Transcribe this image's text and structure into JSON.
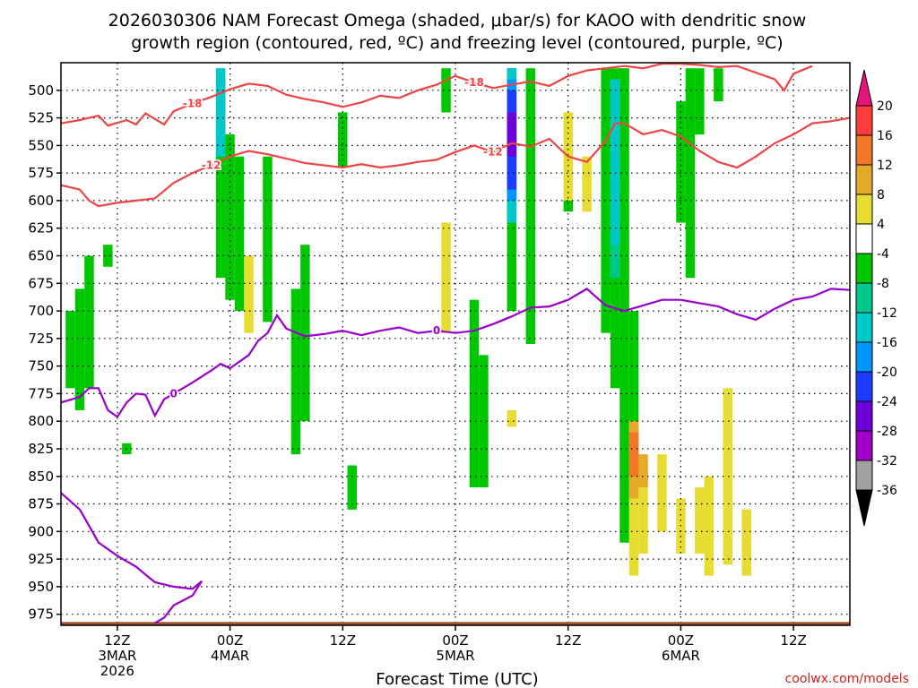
{
  "title_line1": "2026030306 NAM Forecast Omega (shaded, μbar/s) for KAOO with dendritic snow",
  "title_line2": "growth region (contoured, red, ºC) and freezing level (contoured, purple, ºC)",
  "credit": "coolwx.com/models",
  "chart_data": {
    "type": "heatmap",
    "title": "2026030306 NAM Forecast Omega (shaded, μbar/s) for KAOO with dendritic snow growth region (contoured, red, ºC) and freezing level (contoured, purple, ºC)",
    "xlabel": "Forecast Time (UTC)",
    "ylabel": "",
    "x_unit": "hours since 2026-03-03 06Z",
    "xlim": [
      0,
      84
    ],
    "ylim": [
      985,
      475
    ],
    "y_ticks": [
      500,
      525,
      550,
      575,
      600,
      625,
      650,
      675,
      700,
      725,
      750,
      775,
      800,
      825,
      850,
      875,
      900,
      925,
      950,
      975
    ],
    "x_ticks": [
      {
        "x": 6,
        "l1": "12Z",
        "l2": "3MAR",
        "l3": "2026"
      },
      {
        "x": 18,
        "l1": "00Z",
        "l2": "4MAR",
        "l3": ""
      },
      {
        "x": 30,
        "l1": "12Z",
        "l2": "",
        "l3": ""
      },
      {
        "x": 42,
        "l1": "00Z",
        "l2": "5MAR",
        "l3": ""
      },
      {
        "x": 54,
        "l1": "12Z",
        "l2": "",
        "l3": ""
      },
      {
        "x": 66,
        "l1": "00Z",
        "l2": "6MAR",
        "l3": ""
      },
      {
        "x": 78,
        "l1": "12Z",
        "l2": "",
        "l3": ""
      }
    ],
    "colorbar": {
      "labels": [
        "20",
        "16",
        "12",
        "8",
        "4",
        "-4",
        "-8",
        "-12",
        "-16",
        "-20",
        "-24",
        "-28",
        "-32",
        "-36"
      ],
      "colors": [
        "#ff3c3c",
        "#f07828",
        "#e6aa28",
        "#e6dc32",
        "#ffffff",
        "#00c800",
        "#00c88c",
        "#00c8c8",
        "#0096ff",
        "#1e3cff",
        "#6e00dc",
        "#a000c8",
        "#a0a0a0"
      ],
      "top_arrow_color": "#e6147d",
      "bottom_arrow_color": "#000000"
    },
    "contours": [
      {
        "name": "dendritic -18",
        "color": "#ee4444",
        "label": "-18",
        "points": [
          [
            0,
            530
          ],
          [
            2,
            527
          ],
          [
            4,
            523
          ],
          [
            5,
            532
          ],
          [
            7,
            527
          ],
          [
            8,
            531
          ],
          [
            9,
            521
          ],
          [
            11,
            531
          ],
          [
            12,
            519
          ],
          [
            14,
            512
          ],
          [
            16,
            506
          ],
          [
            18,
            499
          ],
          [
            20,
            494
          ],
          [
            22,
            496
          ],
          [
            24,
            504
          ],
          [
            26,
            508
          ],
          [
            28,
            511
          ],
          [
            30,
            515
          ],
          [
            32,
            511
          ],
          [
            34,
            505
          ],
          [
            36,
            507
          ],
          [
            38,
            500
          ],
          [
            40,
            495
          ],
          [
            42,
            487
          ],
          [
            44,
            493
          ],
          [
            46,
            498
          ],
          [
            48,
            495
          ],
          [
            50,
            492
          ],
          [
            52,
            496
          ],
          [
            54,
            487
          ],
          [
            56,
            482
          ],
          [
            58,
            480
          ],
          [
            60,
            478
          ],
          [
            62,
            480
          ],
          [
            64,
            476
          ],
          [
            66,
            476
          ],
          [
            68,
            477
          ],
          [
            70,
            479
          ],
          [
            72,
            478
          ],
          [
            74,
            484
          ],
          [
            76,
            490
          ],
          [
            77,
            500
          ],
          [
            78,
            485
          ],
          [
            80,
            478
          ]
        ]
      },
      {
        "name": "dendritic -12 (upper)",
        "color": "#ee4444",
        "label": "-12",
        "points": [
          [
            0,
            586
          ],
          [
            2,
            590
          ],
          [
            3,
            600
          ],
          [
            4,
            605
          ],
          [
            6,
            602
          ],
          [
            8,
            600
          ],
          [
            10,
            598
          ],
          [
            12,
            584
          ],
          [
            14,
            575
          ],
          [
            16,
            568
          ],
          [
            18,
            560
          ],
          [
            20,
            555
          ],
          [
            22,
            558
          ],
          [
            24,
            562
          ],
          [
            26,
            566
          ],
          [
            28,
            568
          ],
          [
            30,
            570
          ],
          [
            32,
            567
          ],
          [
            34,
            570
          ],
          [
            36,
            568
          ],
          [
            38,
            565
          ],
          [
            40,
            563
          ],
          [
            42,
            556
          ],
          [
            44,
            550
          ],
          [
            46,
            556
          ],
          [
            48,
            548
          ],
          [
            50,
            551
          ],
          [
            52,
            544
          ],
          [
            54,
            560
          ],
          [
            56,
            565
          ],
          [
            58,
            546
          ],
          [
            59,
            530
          ],
          [
            60,
            530
          ],
          [
            62,
            540
          ],
          [
            64,
            536
          ],
          [
            66,
            542
          ],
          [
            68,
            555
          ],
          [
            70,
            565
          ],
          [
            72,
            570
          ],
          [
            74,
            560
          ],
          [
            76,
            548
          ],
          [
            78,
            540
          ],
          [
            80,
            530
          ],
          [
            82,
            528
          ],
          [
            84,
            525
          ]
        ]
      },
      {
        "name": "freezing 0 (upper)",
        "color": "#9900cc",
        "label": "0",
        "points": [
          [
            0,
            783
          ],
          [
            2,
            778
          ],
          [
            3,
            770
          ],
          [
            4,
            770
          ],
          [
            5,
            790
          ],
          [
            6,
            796
          ],
          [
            7,
            783
          ],
          [
            8,
            775
          ],
          [
            9,
            776
          ],
          [
            10,
            795
          ],
          [
            11,
            780
          ],
          [
            12,
            775
          ],
          [
            14,
            765
          ],
          [
            16,
            754
          ],
          [
            17,
            748
          ],
          [
            18,
            752
          ],
          [
            20,
            740
          ],
          [
            21,
            727
          ],
          [
            22,
            720
          ],
          [
            23,
            704
          ],
          [
            24,
            716
          ],
          [
            26,
            723
          ],
          [
            28,
            721
          ],
          [
            30,
            718
          ],
          [
            32,
            722
          ],
          [
            34,
            718
          ],
          [
            36,
            715
          ],
          [
            38,
            720
          ],
          [
            40,
            718
          ],
          [
            42,
            720
          ],
          [
            44,
            718
          ],
          [
            46,
            712
          ],
          [
            48,
            705
          ],
          [
            50,
            697
          ],
          [
            52,
            696
          ],
          [
            54,
            690
          ],
          [
            56,
            680
          ],
          [
            58,
            695
          ],
          [
            60,
            700
          ],
          [
            62,
            695
          ],
          [
            64,
            690
          ],
          [
            66,
            690
          ],
          [
            68,
            693
          ],
          [
            70,
            696
          ],
          [
            72,
            703
          ],
          [
            74,
            708
          ],
          [
            76,
            698
          ],
          [
            78,
            690
          ],
          [
            80,
            687
          ],
          [
            82,
            680
          ],
          [
            84,
            681
          ]
        ]
      },
      {
        "name": "freezing 0 (lower)",
        "color": "#9900cc",
        "label": "",
        "points": [
          [
            0,
            865
          ],
          [
            2,
            880
          ],
          [
            4,
            910
          ],
          [
            6,
            922
          ],
          [
            8,
            932
          ],
          [
            10,
            946
          ],
          [
            12,
            950
          ],
          [
            14,
            952
          ],
          [
            15,
            945
          ],
          [
            14,
            958
          ],
          [
            12,
            967
          ],
          [
            11,
            978
          ],
          [
            10,
            983
          ]
        ]
      }
    ],
    "shaded_regions": [
      {
        "name": "omega -4",
        "color": "#00c800",
        "cells": [
          [
            1,
            700,
            770
          ],
          [
            2,
            680,
            790
          ],
          [
            3,
            650,
            770
          ],
          [
            5,
            640,
            660
          ],
          [
            7,
            820,
            830
          ],
          [
            17,
            530,
            670
          ],
          [
            18,
            540,
            690
          ],
          [
            19,
            560,
            700
          ],
          [
            22,
            560,
            710
          ],
          [
            25,
            680,
            830
          ],
          [
            26,
            640,
            800
          ],
          [
            30,
            520,
            570
          ],
          [
            31,
            840,
            880
          ],
          [
            41,
            480,
            520
          ],
          [
            44,
            690,
            860
          ],
          [
            45,
            740,
            860
          ],
          [
            48,
            480,
            700
          ],
          [
            50,
            480,
            730
          ],
          [
            54,
            540,
            610
          ],
          [
            58,
            480,
            720
          ],
          [
            59,
            480,
            770
          ],
          [
            60,
            480,
            910
          ],
          [
            61,
            700,
            860
          ],
          [
            66,
            510,
            620
          ],
          [
            67,
            480,
            670
          ],
          [
            68,
            480,
            540
          ],
          [
            70,
            480,
            510
          ]
        ]
      },
      {
        "name": "omega -8",
        "color": "#00c88c",
        "cells": [
          [
            17,
            490,
            540
          ],
          [
            48,
            480,
            610
          ],
          [
            59,
            490,
            670
          ]
        ]
      },
      {
        "name": "omega -12",
        "color": "#00c8c8",
        "cells": [
          [
            17,
            480,
            560
          ],
          [
            48,
            480,
            620
          ],
          [
            59,
            490,
            640
          ]
        ]
      },
      {
        "name": "omega -16",
        "color": "#0096ff",
        "cells": [
          [
            48,
            490,
            600
          ]
        ]
      },
      {
        "name": "omega -20",
        "color": "#1e3cff",
        "cells": [
          [
            48,
            500,
            590
          ]
        ]
      },
      {
        "name": "omega -24",
        "color": "#6e00dc",
        "cells": [
          [
            48,
            520,
            560
          ]
        ]
      },
      {
        "name": "omega +4",
        "color": "#e6dc32",
        "cells": [
          [
            20,
            650,
            720
          ],
          [
            41,
            620,
            720
          ],
          [
            48,
            790,
            805
          ],
          [
            54,
            520,
            600
          ],
          [
            56,
            560,
            610
          ],
          [
            61,
            800,
            940
          ],
          [
            62,
            860,
            920
          ],
          [
            64,
            830,
            900
          ],
          [
            66,
            870,
            920
          ],
          [
            68,
            860,
            920
          ],
          [
            69,
            850,
            940
          ],
          [
            71,
            770,
            930
          ],
          [
            73,
            880,
            940
          ]
        ]
      },
      {
        "name": "omega +8",
        "color": "#e6aa28",
        "cells": [
          [
            61,
            800,
            870
          ],
          [
            62,
            830,
            860
          ]
        ]
      },
      {
        "name": "omega +12",
        "color": "#f07828",
        "cells": [
          [
            61,
            810,
            850
          ]
        ]
      }
    ],
    "ground_level": 982
  }
}
